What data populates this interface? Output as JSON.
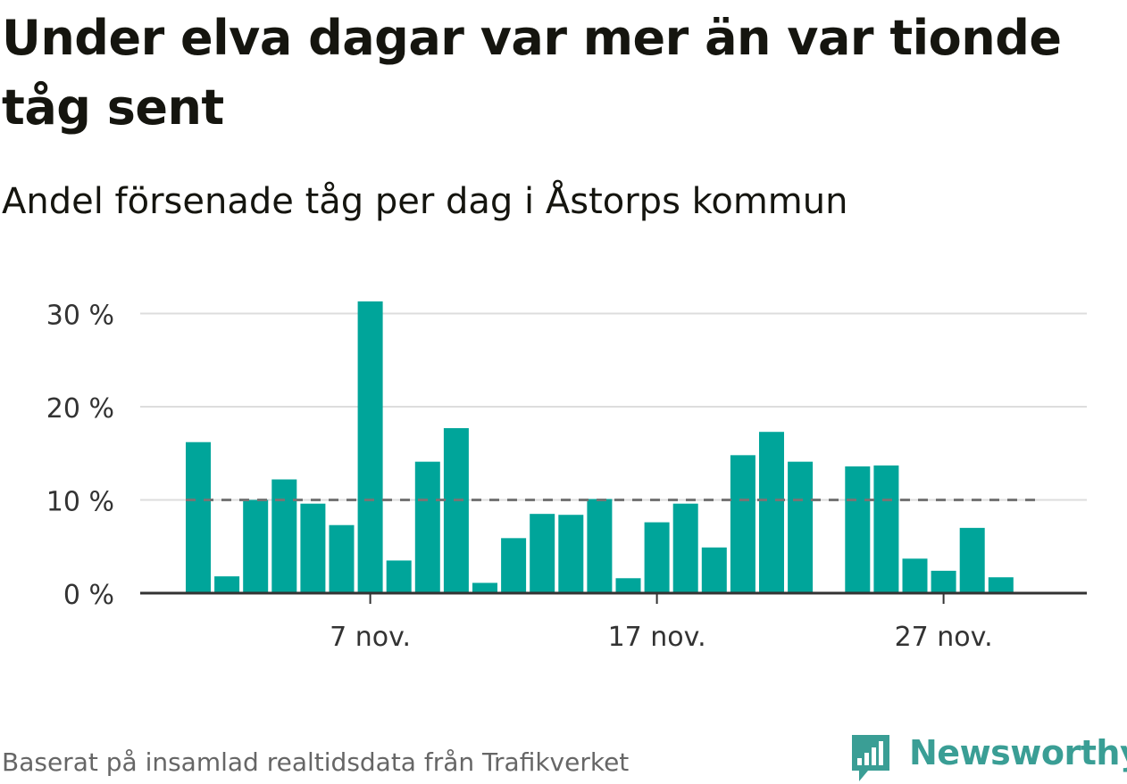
{
  "header": {
    "title": "Under elva dagar var mer än var tionde tåg sent",
    "subtitle": "Andel försenade tåg per dag i Åstorps kommun"
  },
  "footer": {
    "source": "Baserat på insamlad realtidsdata från Trafikverket",
    "brand": "Newsworthy"
  },
  "colors": {
    "bar": "#00a59a",
    "reference_line": "#757575",
    "grid": "#dddddd",
    "axis": "#333333",
    "brand": "#3a9e95"
  },
  "chart_data": {
    "type": "bar",
    "x": [
      1,
      2,
      3,
      4,
      5,
      6,
      7,
      8,
      9,
      10,
      11,
      12,
      13,
      14,
      15,
      16,
      17,
      18,
      19,
      20,
      21,
      22,
      23,
      24,
      25,
      26,
      27,
      28,
      29,
      30
    ],
    "values": [
      16.2,
      1.8,
      10,
      12.2,
      9.6,
      7.3,
      31.3,
      3.5,
      14.1,
      17.7,
      1.1,
      5.9,
      8.5,
      8.4,
      10.1,
      1.6,
      7.6,
      9.6,
      4.9,
      14.8,
      17.3,
      14.1,
      null,
      13.6,
      13.7,
      3.7,
      2.4,
      7,
      1.7,
      null
    ],
    "xticks": [
      {
        "x": 7,
        "label": "7 nov."
      },
      {
        "x": 17,
        "label": "17 nov."
      },
      {
        "x": 27,
        "label": "27 nov."
      }
    ],
    "yticks": [
      {
        "value": 0,
        "label": "0 %"
      },
      {
        "value": 10,
        "label": "10 %"
      },
      {
        "value": 20,
        "label": "20 %"
      },
      {
        "value": 30,
        "label": "30 %"
      }
    ],
    "ylim": [
      0,
      31.5
    ],
    "reference_line": 10,
    "grid": true
  }
}
